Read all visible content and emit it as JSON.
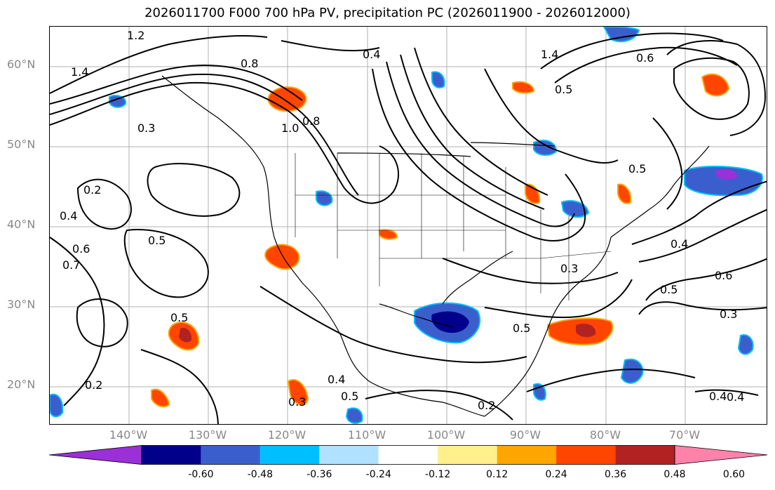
{
  "title": "2026011700 F000 700 hPa PV, precipitation PC (2026011900 - 2026012000)",
  "map": {
    "lat_labels": [
      "60°N",
      "50°N",
      "40°N",
      "30°N",
      "20°N"
    ],
    "lon_labels": [
      "140°W",
      "130°W",
      "120°W",
      "110°W",
      "100°W",
      "90°W",
      "80°W",
      "70°W"
    ],
    "contour_labels": [
      "1.2",
      "1.4",
      "0.3",
      "0.2",
      "0.4",
      "0.5",
      "0.7",
      "0.6",
      "0.8",
      "1.0",
      "0.5",
      "0.2",
      "0.5",
      "0.4",
      "0.6",
      "0.5",
      "0.3",
      "0.4",
      "0.8",
      "1.4",
      "0.5",
      "0.6",
      "0.5",
      "0.4",
      "0.3",
      "0.2",
      "0.4",
      "0.3",
      "0.5",
      "0.4"
    ]
  },
  "colorbar": {
    "colors": [
      "#9b30d9",
      "#00008b",
      "#3a5fcd",
      "#00bfff",
      "#b0e2ff",
      "#ffffff",
      "#fff08c",
      "#ffa500",
      "#ff4500",
      "#b22222",
      "#ff82ab"
    ],
    "ticks": [
      "-0.60",
      "-0.48",
      "-0.36",
      "-0.24",
      "-0.12",
      "0.12",
      "0.24",
      "0.36",
      "0.48",
      "0.60"
    ]
  }
}
